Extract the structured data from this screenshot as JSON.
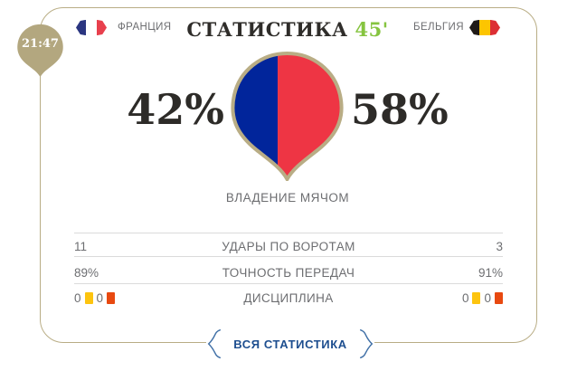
{
  "badge": {
    "time": "21:47"
  },
  "header": {
    "title": "СТАТИСТИКА",
    "minute": "45'",
    "home": {
      "name": "ФРАНЦИЯ",
      "flag_colors": [
        "#2a3580",
        "#ffffff",
        "#e8404d"
      ]
    },
    "away": {
      "name": "БЕЛЬГИЯ",
      "flag_colors": [
        "#1f1a17",
        "#fdc500",
        "#dc2f34"
      ]
    }
  },
  "possession": {
    "label": "ВЛАДЕНИЕ МЯЧОМ",
    "home_pct": "42%",
    "away_pct": "58%",
    "home_value": 42,
    "away_value": 58
  },
  "stats": [
    {
      "label": "УДАРЫ ПО ВОРОТАМ",
      "home": "11",
      "away": "3"
    },
    {
      "label": "ТОЧНОСТЬ ПЕРЕДАЧ",
      "home": "89%",
      "away": "91%"
    },
    {
      "label": "ДИСЦИПЛИНА",
      "home_yellow": "0",
      "home_red": "0",
      "away_yellow": "0",
      "away_red": "0"
    }
  ],
  "button": {
    "label": "ВСЯ СТАТИСТИКА"
  },
  "colors": {
    "frame_tan": "#b9ad85",
    "badge_tan": "#b3a77f",
    "possession_home": "#01259b",
    "possession_away": "#ee3544",
    "yellow_card": "#fdc40f",
    "red_card": "#e84910",
    "minute_green": "#86c440",
    "button_blue": "#1d4e8f",
    "chevron_blue": "#3f6fa6",
    "text_gray": "#6d6e71",
    "text_dark": "#2d2b28"
  }
}
